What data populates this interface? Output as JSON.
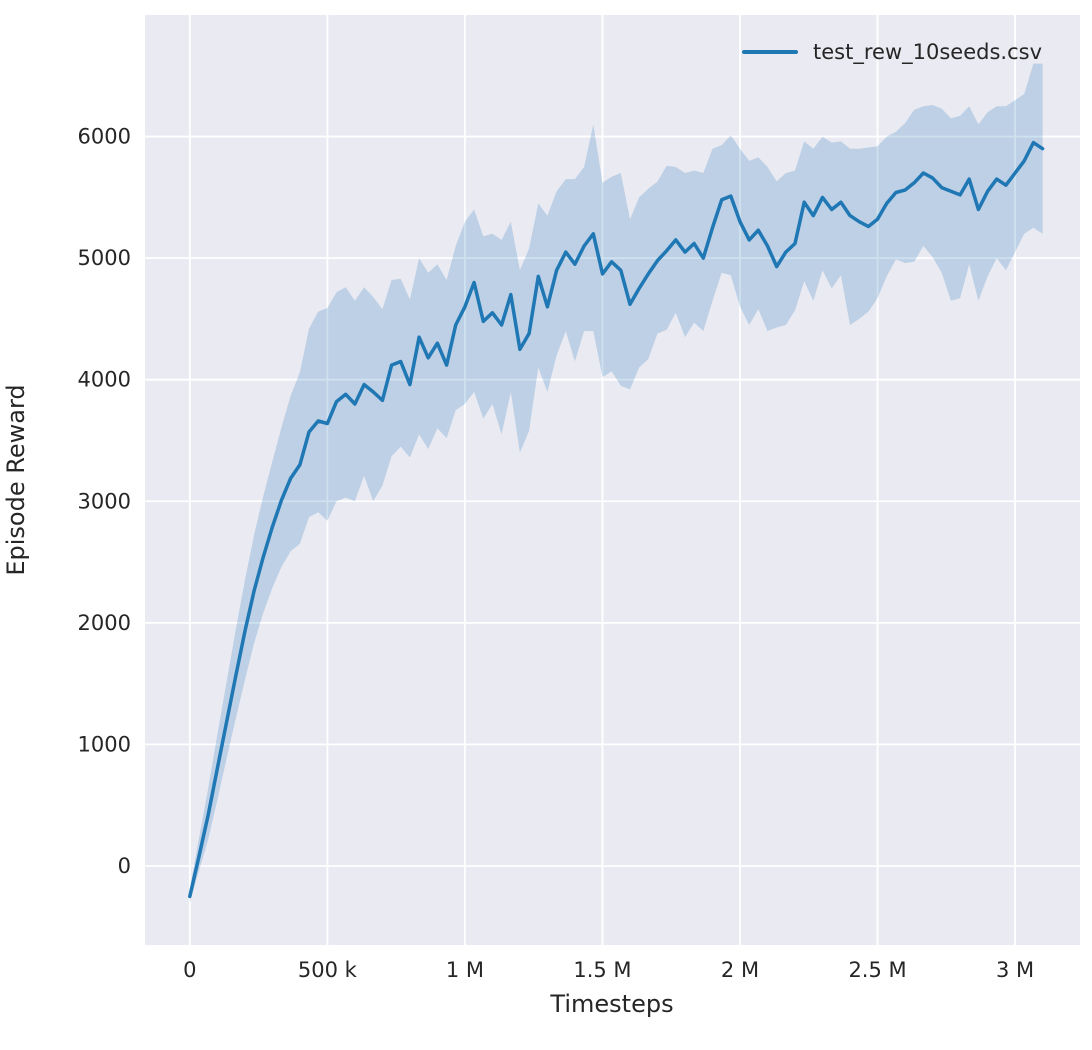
{
  "figure": {
    "xlabel": "Timesteps",
    "ylabel": "Episode Reward",
    "legend": {
      "label": "test_rew_10seeds.csv",
      "color": "#1f77b4"
    }
  },
  "chart_data": {
    "type": "line",
    "title": "",
    "xlabel": "Timesteps",
    "ylabel": "Episode Reward",
    "legend_entries": [
      "test_rew_10seeds.csv"
    ],
    "legend_position": "upper right",
    "grid": true,
    "axes_background": "#eaeaf2",
    "grid_color": "#ffffff",
    "line_color": "#1f77b4",
    "band_color": "#1f77b4",
    "band_opacity": 0.22,
    "xlim": [
      -163000,
      3236000
    ],
    "ylim": [
      -650,
      7000
    ],
    "x_ticks": [
      0,
      500000,
      1000000,
      1500000,
      2000000,
      2500000,
      3000000
    ],
    "x_tick_labels": [
      "0",
      "500 k",
      "1 M",
      "1.5 M",
      "2 M",
      "2.5 M",
      "3 M"
    ],
    "y_ticks": [
      0,
      1000,
      2000,
      3000,
      4000,
      5000,
      6000
    ],
    "y_tick_labels": [
      "0",
      "1000",
      "2000",
      "3000",
      "4000",
      "5000",
      "6000"
    ],
    "x_unit": "timesteps",
    "x_start": 0,
    "x_step": 33333,
    "series": [
      {
        "name": "test_rew_10seeds.csv",
        "mean": [
          -250,
          80,
          420,
          800,
          1180,
          1560,
          1930,
          2260,
          2540,
          2790,
          3010,
          3190,
          3300,
          3570,
          3660,
          3640,
          3820,
          3880,
          3800,
          3960,
          3900,
          3830,
          4120,
          4150,
          3960,
          4350,
          4180,
          4300,
          4120,
          4450,
          4600,
          4800,
          4480,
          4550,
          4450,
          4700,
          4250,
          4380,
          4850,
          4600,
          4900,
          5050,
          4950,
          5100,
          5200,
          4870,
          4970,
          4900,
          4620,
          4750,
          4870,
          4980,
          5060,
          5150,
          5050,
          5120,
          5000,
          5250,
          5480,
          5510,
          5300,
          5150,
          5230,
          5100,
          4930,
          5050,
          5120,
          5460,
          5350,
          5500,
          5400,
          5460,
          5350,
          5300,
          5260,
          5320,
          5450,
          5540,
          5560,
          5620,
          5700,
          5660,
          5580,
          5550,
          5520,
          5650,
          5400,
          5550,
          5650,
          5600,
          5700,
          5800,
          5950,
          5900
        ],
        "band_above_mean": [
          60,
          150,
          220,
          280,
          330,
          380,
          420,
          460,
          500,
          540,
          600,
          680,
          760,
          850,
          900,
          950,
          900,
          880,
          850,
          800,
          780,
          750,
          700,
          680,
          700,
          650,
          700,
          650,
          700,
          650,
          700,
          600,
          700,
          650,
          700,
          600,
          650,
          700,
          600,
          750,
          650,
          600,
          700,
          650,
          900,
          750,
          700,
          800,
          700,
          750,
          700,
          650,
          700,
          600,
          650,
          600,
          700,
          650,
          450,
          500,
          600,
          650,
          600,
          650,
          700,
          650,
          600,
          500,
          550,
          500,
          550,
          500,
          550,
          600,
          650,
          600,
          550,
          500,
          550,
          600,
          550,
          600,
          650,
          600,
          650,
          600,
          700,
          650,
          600,
          650,
          600,
          550,
          650,
          700
        ],
        "band_below_mean": [
          50,
          120,
          200,
          260,
          300,
          350,
          400,
          430,
          460,
          500,
          550,
          600,
          650,
          700,
          750,
          800,
          820,
          850,
          800,
          750,
          900,
          700,
          750,
          700,
          600,
          800,
          750,
          700,
          600,
          700,
          800,
          900,
          800,
          750,
          900,
          800,
          850,
          800,
          750,
          700,
          700,
          650,
          800,
          700,
          800,
          850,
          900,
          950,
          700,
          650,
          700,
          600,
          650,
          600,
          700,
          650,
          600,
          600,
          600,
          650,
          700,
          700,
          650,
          700,
          500,
          600,
          550,
          650,
          700,
          600,
          650,
          600,
          900,
          800,
          700,
          650,
          600,
          550,
          600,
          650,
          600,
          650,
          700,
          900,
          850,
          700,
          750,
          700,
          650,
          700,
          650,
          600,
          700,
          700
        ]
      }
    ]
  }
}
